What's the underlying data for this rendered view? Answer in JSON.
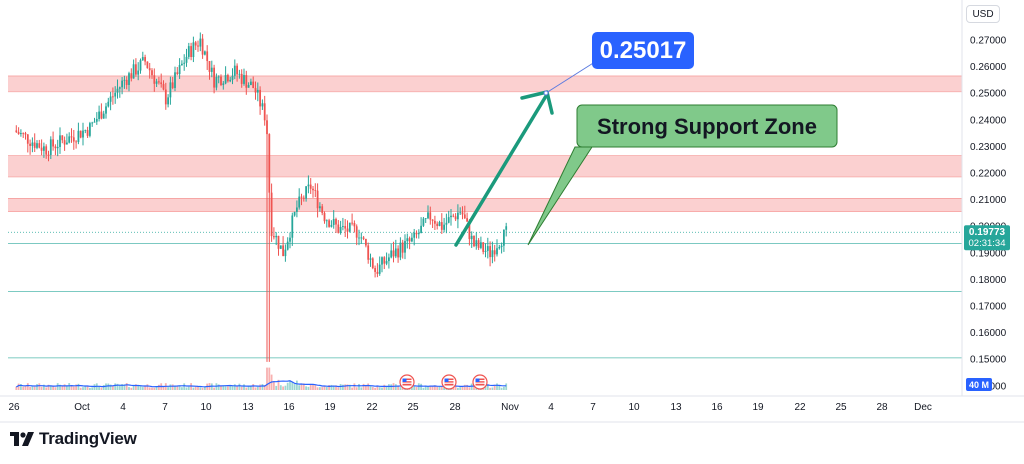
{
  "brand": {
    "name": "TradingView",
    "logo_icon": "tradingview-logo-icon"
  },
  "toolbar": {
    "currency": "USD"
  },
  "colors": {
    "up": "#26a69a",
    "down": "#ef5350",
    "zone_fill": "#f9c0c0",
    "zone_border": "#ef5350",
    "arrow": "#1b9a7c",
    "target_box": "#2962ff",
    "support_box": "#80c98a",
    "support_border": "#2e7d32",
    "hline": "#26a69a",
    "volume_ma": "#2962ff"
  },
  "annotations": {
    "target_label": "0.25017",
    "support_label": "Strong Support Zone"
  },
  "price_badges": {
    "last_price": "0.19773",
    "countdown": "02:31:34",
    "volume_label": "40 M"
  },
  "chart_data": {
    "type": "candlestick",
    "currency": "USD",
    "ylim": [
      0.145,
      0.275
    ],
    "y_ticks": [
      0.27,
      0.26,
      0.25,
      0.24,
      0.23,
      0.22,
      0.21,
      0.2,
      0.19,
      0.18,
      0.17,
      0.16,
      0.15,
      0.14
    ],
    "y_tick_labels": [
      "0.27000",
      "0.26000",
      "0.25000",
      "0.24000",
      "0.23000",
      "0.22000",
      "0.21000",
      "0.20000",
      "0.19000",
      "0.18000",
      "0.17000",
      "0.16000",
      "0.15000",
      "0.14000"
    ],
    "x_ticks": [
      "26",
      "Oct",
      "4",
      "7",
      "10",
      "13",
      "16",
      "19",
      "22",
      "25",
      "28",
      "Nov",
      "4",
      "7",
      "10",
      "13",
      "16",
      "19",
      "22",
      "25",
      "28",
      "Dec"
    ],
    "price_path": [
      [
        0,
        0.236
      ],
      [
        2.3,
        0.229
      ],
      [
        5.5,
        0.237
      ],
      [
        8,
        0.255
      ],
      [
        9.5,
        0.262
      ],
      [
        11,
        0.248
      ],
      [
        12.6,
        0.265
      ],
      [
        13.5,
        0.27
      ],
      [
        14.5,
        0.255
      ],
      [
        16,
        0.258
      ],
      [
        17.4,
        0.252
      ],
      [
        18.3,
        0.24
      ],
      [
        18.6,
        0.2
      ],
      [
        19.5,
        0.19
      ],
      [
        20.5,
        0.207
      ],
      [
        21.5,
        0.215
      ],
      [
        22.5,
        0.204
      ],
      [
        23.5,
        0.199
      ],
      [
        25,
        0.198
      ],
      [
        26.2,
        0.183
      ],
      [
        27.5,
        0.19
      ],
      [
        29,
        0.195
      ],
      [
        30.2,
        0.204
      ],
      [
        31,
        0.2
      ],
      [
        32.4,
        0.206
      ],
      [
        33.3,
        0.193
      ],
      [
        34.5,
        0.19
      ],
      [
        35.2,
        0.195
      ],
      [
        35.8,
        0.1977
      ]
    ],
    "resistance_zones": [
      {
        "low": 0.2505,
        "high": 0.2565
      },
      {
        "low": 0.2185,
        "high": 0.2265
      },
      {
        "low": 0.2055,
        "high": 0.2105
      }
    ],
    "horizontal_lines": [
      0.1935,
      0.1755,
      0.1505
    ],
    "last_price": 0.19773,
    "target_price": 0.25017
  }
}
